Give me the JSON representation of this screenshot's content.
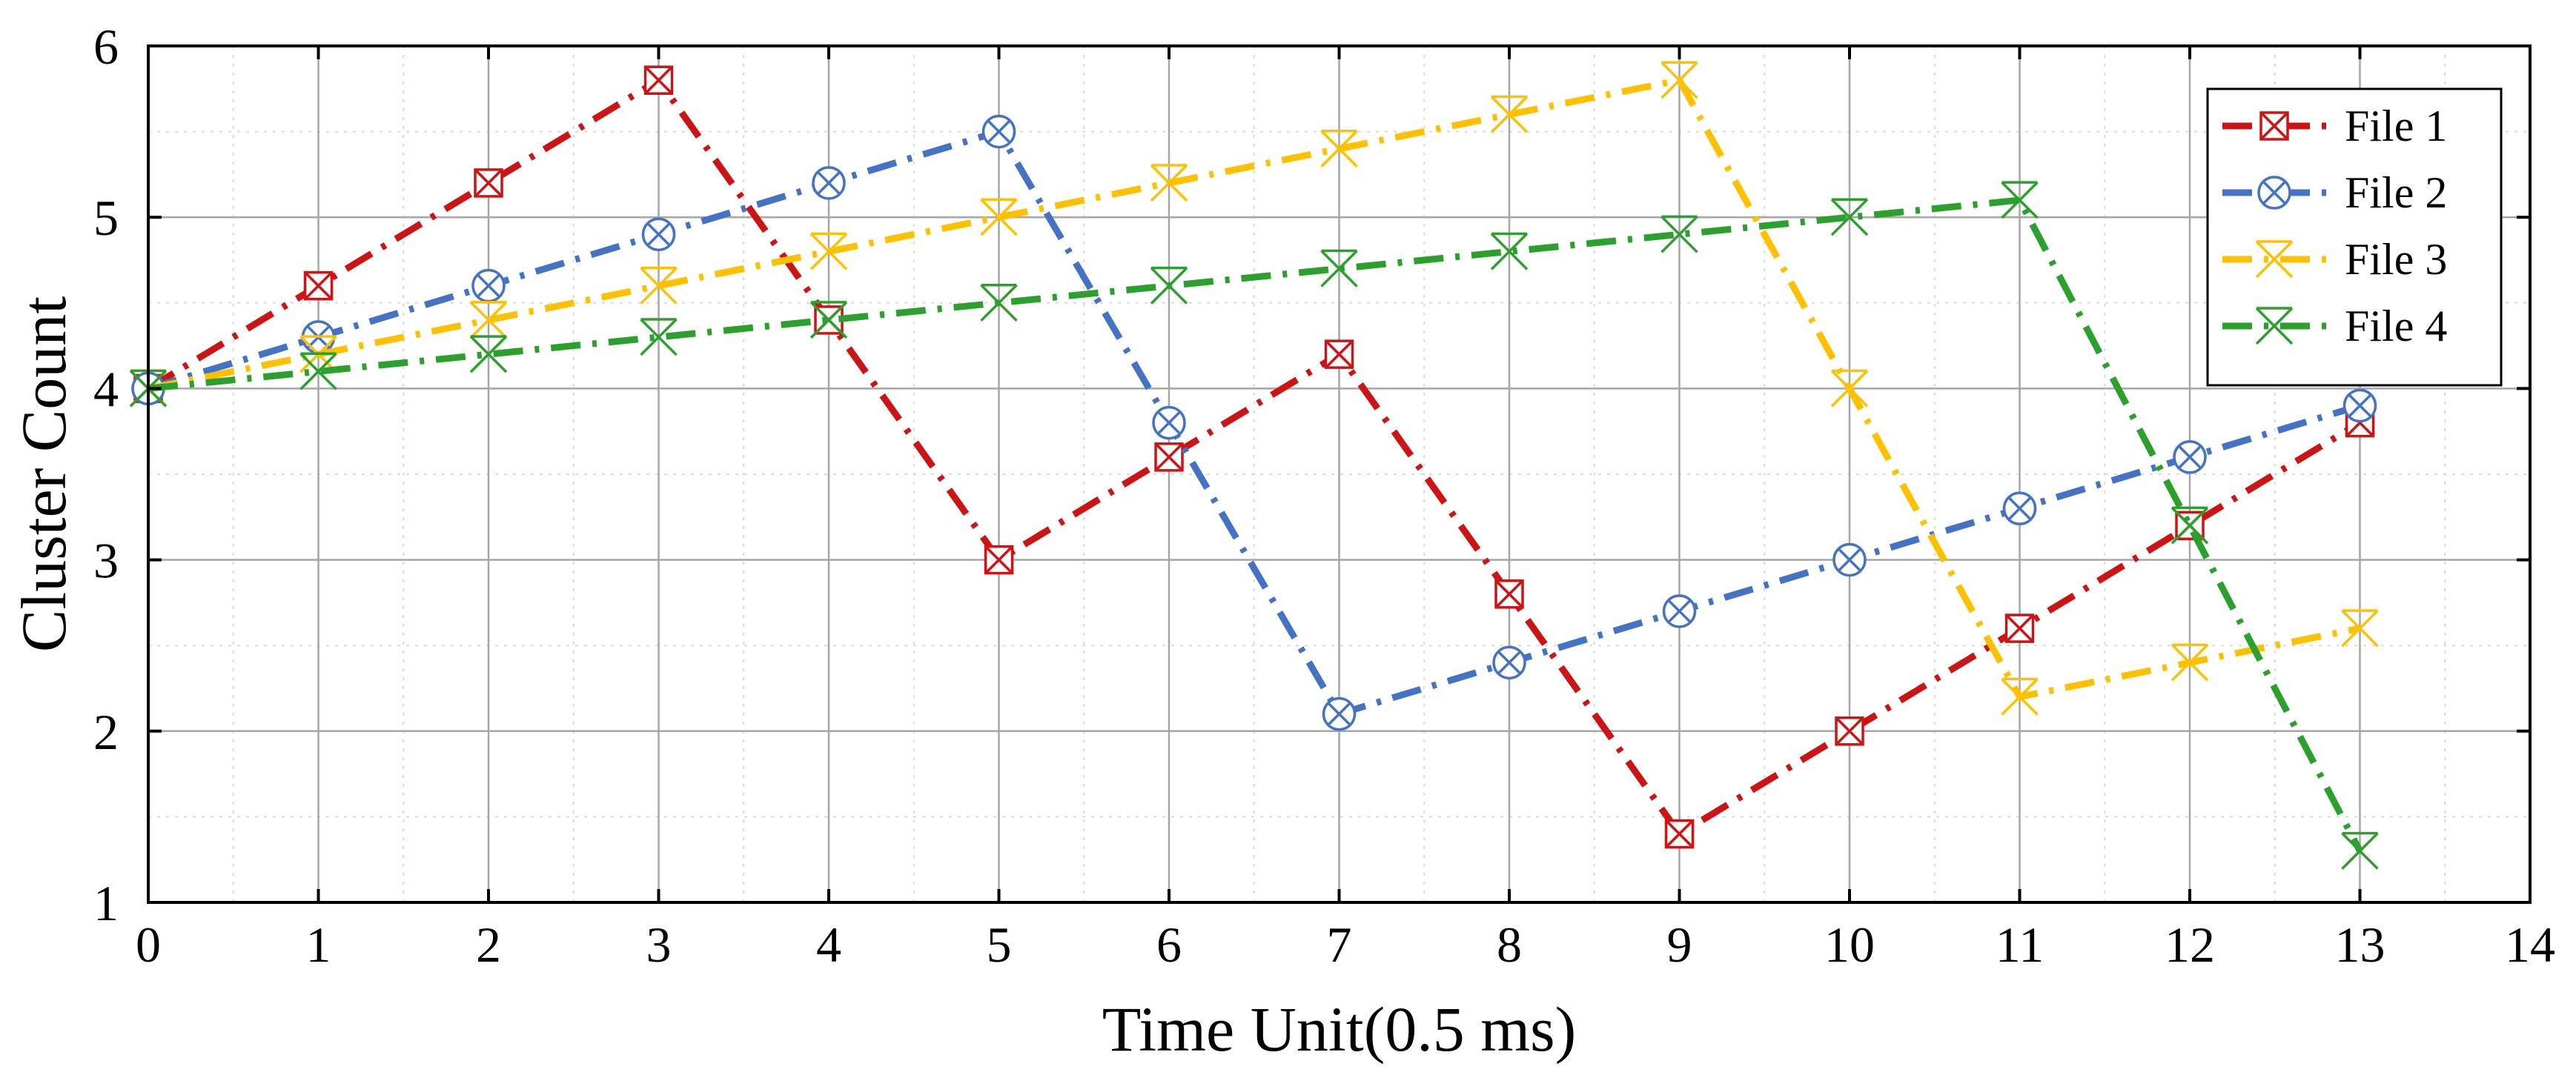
{
  "chart_data": {
    "type": "line",
    "title": "",
    "xlabel": "Time Unit(0.5 ms)",
    "ylabel": "Cluster Count",
    "xlim": [
      0,
      14
    ],
    "ylim": [
      1,
      6
    ],
    "xticks": [
      0,
      1,
      2,
      3,
      4,
      5,
      6,
      7,
      8,
      9,
      10,
      11,
      12,
      13,
      14
    ],
    "yticks": [
      1,
      2,
      3,
      4,
      5,
      6
    ],
    "xtick_labels": [
      "0",
      "1",
      "2",
      "3",
      "4",
      "5",
      "6",
      "7",
      "8",
      "9",
      "10",
      "11",
      "12",
      "13",
      "14"
    ],
    "ytick_labels": [
      "1",
      "2",
      "3",
      "4",
      "5",
      "6"
    ],
    "grid": true,
    "legend_position": "top-right",
    "x": [
      0,
      1,
      2,
      3,
      4,
      5,
      6,
      7,
      8,
      9,
      10,
      11,
      12,
      13
    ],
    "series": [
      {
        "name": "File 1",
        "color": "#cc1414",
        "marker": "boxed-x",
        "values": [
          4.0,
          4.6,
          5.2,
          5.8,
          4.4,
          3.0,
          3.6,
          4.2,
          2.8,
          1.4,
          2.0,
          2.6,
          3.2,
          3.8
        ]
      },
      {
        "name": "File 2",
        "color": "#4472c4",
        "marker": "circled-x",
        "values": [
          4.0,
          4.3,
          4.6,
          4.9,
          5.2,
          5.5,
          3.8,
          2.1,
          2.4,
          2.7,
          3.0,
          3.3,
          3.6,
          3.9
        ]
      },
      {
        "name": "File 3",
        "color": "#ffc000",
        "marker": "x-with-bar",
        "values": [
          4.0,
          4.2,
          4.4,
          4.6,
          4.8,
          5.0,
          5.2,
          5.4,
          5.6,
          5.8,
          4.0,
          2.2,
          2.4,
          2.6
        ]
      },
      {
        "name": "File 4",
        "color": "#2ca02c",
        "marker": "x-with-bar",
        "values": [
          4.0,
          4.1,
          4.2,
          4.3,
          4.4,
          4.5,
          4.6,
          4.7,
          4.8,
          4.9,
          5.0,
          5.1,
          3.2,
          1.3
        ]
      }
    ]
  }
}
